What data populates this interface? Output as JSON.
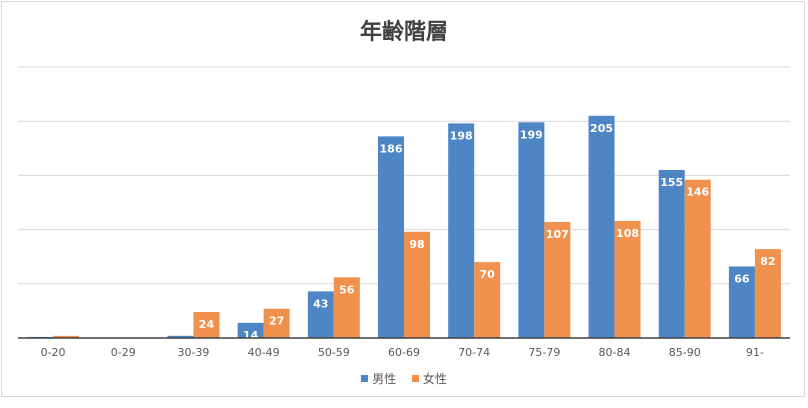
{
  "chart_data": {
    "type": "bar",
    "title": "年齢階層",
    "xlabel": "",
    "ylabel": "",
    "categories": [
      "0-20",
      "0-29",
      "30-39",
      "40-49",
      "50-59",
      "60-69",
      "70-74",
      "75-79",
      "80-84",
      "85-90",
      "91-"
    ],
    "series": [
      {
        "name": "男性",
        "color": "#4e86c5",
        "values": [
          1,
          0,
          2,
          14,
          43,
          186,
          198,
          199,
          205,
          155,
          66
        ],
        "labels": [
          "",
          "",
          "",
          "14",
          "43",
          "186",
          "198",
          "199",
          "205",
          "155",
          "66"
        ]
      },
      {
        "name": "女性",
        "color": "#f0914e",
        "values": [
          2,
          0,
          24,
          27,
          56,
          98,
          70,
          107,
          108,
          146,
          82
        ],
        "labels": [
          "",
          "",
          "24",
          "27",
          "56",
          "98",
          "70",
          "107",
          "108",
          "146",
          "82"
        ]
      }
    ],
    "ylim": [
      0,
      250
    ],
    "grid": true,
    "legend": "bottom"
  }
}
